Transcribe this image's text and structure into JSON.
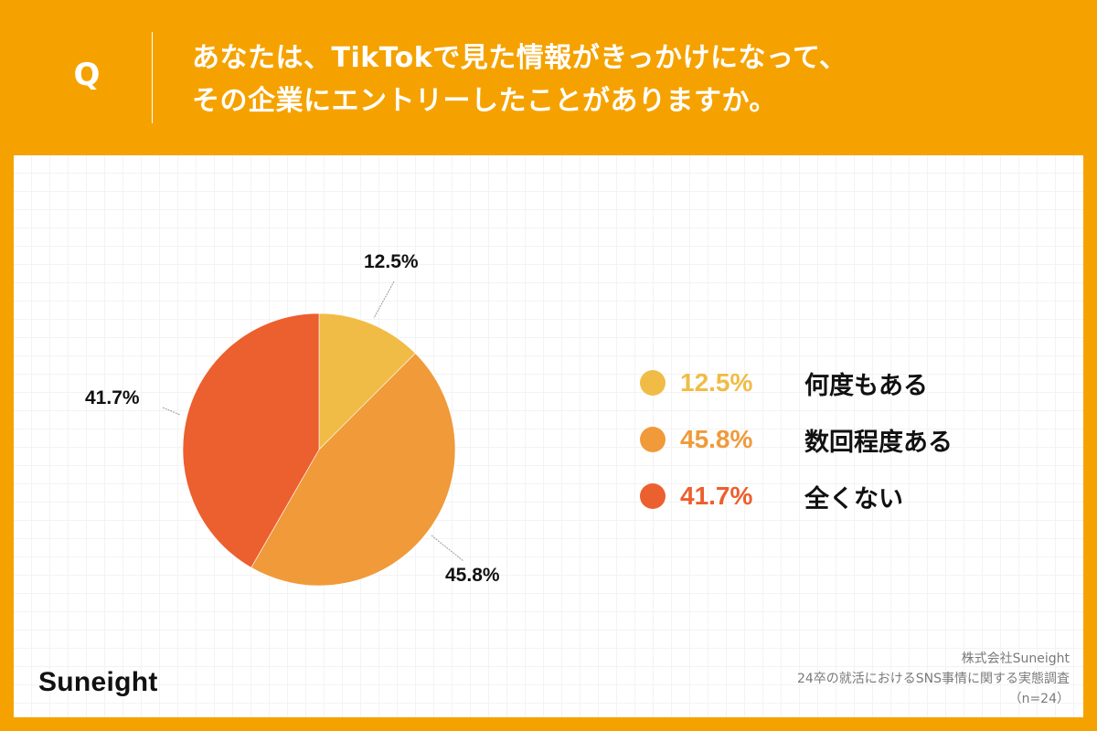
{
  "header": {
    "q_mark": "Q",
    "question_line1": "あなたは、TikTokで見た情報がきっかけになって、",
    "question_line2": "その企業にエントリーしたことがありますか。",
    "background_color": "#F5A200"
  },
  "chart_data": {
    "type": "pie",
    "title": "あなたは、TikTokで見た情報がきっかけになって、その企業にエントリーしたことがありますか。",
    "categories": [
      "何度もある",
      "数回程度ある",
      "全くない"
    ],
    "values": [
      12.5,
      45.8,
      41.7
    ],
    "value_labels": [
      "12.5%",
      "45.8%",
      "41.7%"
    ],
    "colors": [
      "#F0BC45",
      "#F09A3A",
      "#EC5F2E"
    ],
    "start_angle": "12 o'clock, clockwise",
    "legend_position": "right",
    "sample_size": "n=24"
  },
  "pie_labels": {
    "s1": "12.5%",
    "s2": "45.8%",
    "s3": "41.7%"
  },
  "legend": [
    {
      "pct": "12.5%",
      "label": "何度もある",
      "color": "#F0BC45"
    },
    {
      "pct": "45.8%",
      "label": "数回程度ある",
      "color": "#F09A3A"
    },
    {
      "pct": "41.7%",
      "label": "全くない",
      "color": "#EC5F2E"
    }
  ],
  "footer": {
    "brand": "Suneight",
    "source_line1": "株式会社Suneight",
    "source_line2": "24卒の就活におけるSNS事情に関する実態調査",
    "source_line3": "（n=24）"
  }
}
